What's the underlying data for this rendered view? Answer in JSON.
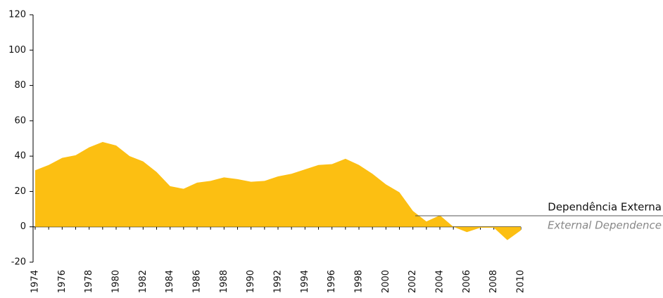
{
  "chart_data": {
    "type": "area",
    "x": [
      1974,
      1975,
      1976,
      1977,
      1978,
      1979,
      1980,
      1981,
      1982,
      1983,
      1984,
      1985,
      1986,
      1987,
      1988,
      1989,
      1990,
      1991,
      1992,
      1993,
      1994,
      1995,
      1996,
      1997,
      1998,
      1999,
      2000,
      2001,
      2002,
      2003,
      2004,
      2005,
      2006,
      2007,
      2008,
      2009,
      2010
    ],
    "values": [
      32,
      35,
      39,
      40.5,
      45,
      48,
      46,
      40,
      37,
      31,
      23,
      21.5,
      25,
      26,
      28,
      27,
      25.5,
      26,
      28.5,
      30,
      32.5,
      35,
      35.5,
      38.5,
      35,
      30,
      24,
      19.5,
      9,
      3,
      6.5,
      0,
      -3,
      -0.5,
      -0.5,
      -7.5,
      -2
    ],
    "color": "#fcbf12",
    "xlim": [
      1974,
      2010
    ],
    "xticks": [
      1974,
      1976,
      1978,
      1980,
      1982,
      1984,
      1986,
      1988,
      1990,
      1992,
      1994,
      1996,
      1998,
      2000,
      2002,
      2004,
      2006,
      2008,
      2010
    ],
    "ylim": [
      -20,
      120
    ],
    "yticks": [
      -20,
      0,
      20,
      40,
      60,
      80,
      100,
      120
    ],
    "annotations": [
      "Dependência Externa",
      "External Dependence"
    ]
  }
}
